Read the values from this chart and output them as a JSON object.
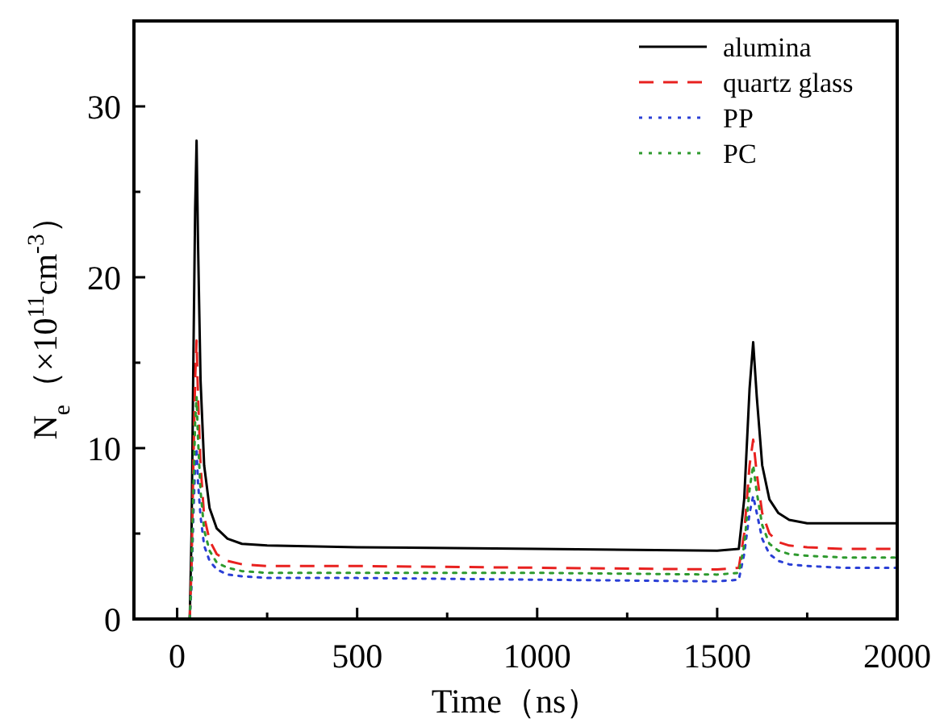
{
  "chart_data": {
    "type": "line",
    "xlabel": "Time（ns）",
    "ylabel": "N$_{e}$（×10$^{11}$cm$^{-3}$）",
    "xlim": [
      -120,
      2000
    ],
    "ylim": [
      0,
      35
    ],
    "xticks": [
      0,
      {
        "value": 250,
        "label": null
      },
      500,
      {
        "value": 750,
        "label": null
      },
      1000,
      {
        "value": 1250,
        "label": null
      },
      1500,
      {
        "value": 1750,
        "label": null
      },
      2000
    ],
    "yticks": [
      0,
      {
        "value": 5,
        "label": null
      },
      10,
      {
        "value": 15,
        "label": null
      },
      20,
      {
        "value": 25,
        "label": null
      },
      30
    ],
    "legend": "top right",
    "grid": false,
    "series": [
      {
        "name": "alumina",
        "color": "#000000",
        "line_style": "solid",
        "x": [
          35,
          40,
          45,
          50,
          54,
          58,
          65,
          75,
          90,
          110,
          140,
          180,
          250,
          500,
          1000,
          1500,
          1560,
          1575,
          1590,
          1600,
          1610,
          1625,
          1645,
          1670,
          1700,
          1750,
          1850,
          2000
        ],
        "values": [
          0,
          5,
          15,
          24,
          28,
          22,
          14,
          9,
          6.5,
          5.3,
          4.7,
          4.4,
          4.3,
          4.2,
          4.1,
          4.0,
          4.1,
          7,
          13.5,
          16.2,
          13,
          9,
          7,
          6.2,
          5.8,
          5.6,
          5.6,
          5.6
        ]
      },
      {
        "name": "quartz glass",
        "color": "#e8211f",
        "line_style": "dashed",
        "x": [
          35,
          40,
          45,
          50,
          54,
          58,
          65,
          75,
          90,
          110,
          140,
          180,
          250,
          500,
          1000,
          1500,
          1560,
          1575,
          1590,
          1600,
          1610,
          1625,
          1645,
          1670,
          1700,
          1750,
          1850,
          2000
        ],
        "values": [
          0,
          3,
          9,
          14,
          16.3,
          13,
          9,
          6,
          4.6,
          3.8,
          3.4,
          3.2,
          3.1,
          3.1,
          3.0,
          2.9,
          3.0,
          5,
          9,
          10.5,
          8.5,
          6.2,
          5,
          4.5,
          4.3,
          4.2,
          4.1,
          4.1
        ]
      },
      {
        "name": "PP",
        "color": "#2a3fd6",
        "line_style": "dotted",
        "x": [
          35,
          40,
          45,
          50,
          54,
          58,
          65,
          75,
          90,
          110,
          140,
          180,
          250,
          500,
          1000,
          1500,
          1560,
          1575,
          1590,
          1600,
          1610,
          1625,
          1645,
          1670,
          1700,
          1750,
          1850,
          2000
        ],
        "values": [
          0,
          2,
          6,
          9,
          10,
          8,
          6,
          4.3,
          3.4,
          2.9,
          2.6,
          2.5,
          2.4,
          2.4,
          2.3,
          2.2,
          2.3,
          3.8,
          6.2,
          7.2,
          6.2,
          4.7,
          3.8,
          3.4,
          3.2,
          3.1,
          3.0,
          3.0
        ]
      },
      {
        "name": "PC",
        "color": "#2e9a2e",
        "line_style": "dotted",
        "x": [
          35,
          40,
          45,
          50,
          54,
          58,
          65,
          75,
          90,
          110,
          140,
          180,
          250,
          500,
          1000,
          1500,
          1560,
          1575,
          1590,
          1600,
          1610,
          1625,
          1645,
          1670,
          1700,
          1750,
          1850,
          2000
        ],
        "values": [
          0,
          2.5,
          7.5,
          11.5,
          13,
          10.5,
          7.5,
          5.2,
          4,
          3.3,
          3,
          2.8,
          2.7,
          2.7,
          2.7,
          2.6,
          2.7,
          4.3,
          7.6,
          9,
          7.4,
          5.5,
          4.4,
          4,
          3.8,
          3.7,
          3.6,
          3.6
        ]
      }
    ]
  }
}
